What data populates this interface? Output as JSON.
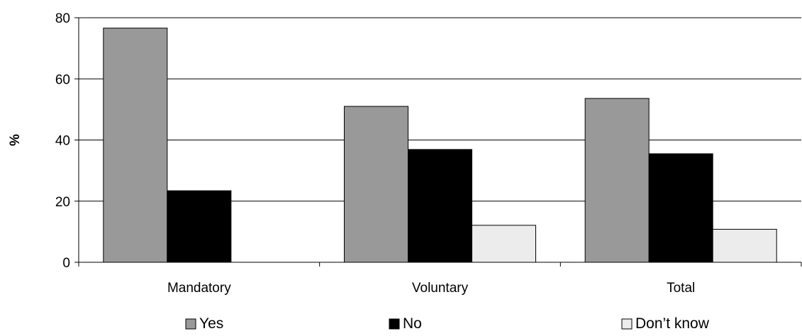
{
  "chart_data": {
    "type": "bar",
    "title": "",
    "xlabel": "",
    "ylabel": "%",
    "ylim": [
      0,
      80
    ],
    "yticks": [
      0,
      20,
      40,
      60,
      80
    ],
    "grid": true,
    "legend_position": "bottom",
    "categories": [
      "Mandatory",
      "Voluntary",
      "Total"
    ],
    "series": [
      {
        "name": "Yes",
        "color": "#999999",
        "values": [
          76.6,
          51.0,
          53.6
        ]
      },
      {
        "name": "No",
        "color": "#000000",
        "values": [
          23.4,
          36.9,
          35.5
        ]
      },
      {
        "name": "Don’t know",
        "color": "#ececec",
        "values": [
          0,
          12.1,
          10.8
        ]
      }
    ]
  }
}
